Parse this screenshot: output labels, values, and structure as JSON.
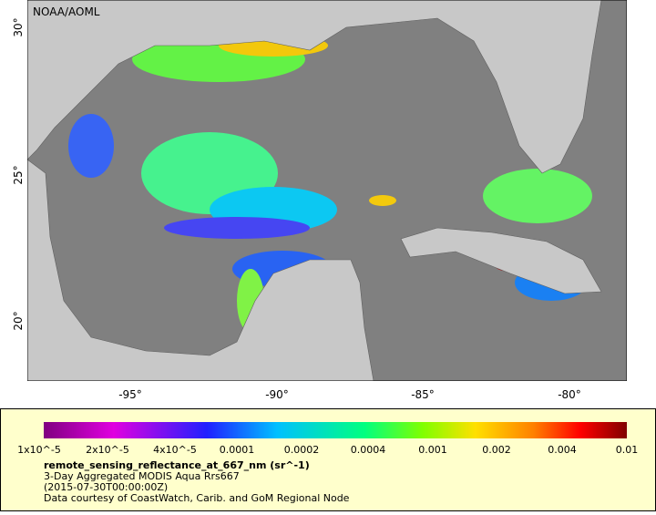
{
  "map": {
    "credit": "NOAA/AOML",
    "lat_labels": [
      "30°",
      "25°",
      "20°"
    ],
    "lon_labels": [
      "-95°",
      "-90°",
      "-85°",
      "-80°"
    ]
  },
  "legend": {
    "colorbar_labels": [
      "1x10^-5",
      "2x10^-5",
      "4x10^-5",
      "0.0001",
      "0.0002",
      "0.0004",
      "0.001",
      "0.002",
      "0.004",
      "0.01"
    ],
    "variable": "remote_sensing_reflectance_at_667_nm (sr^-1)",
    "dataset": "3-Day Aggregated MODIS Aqua Rrs667",
    "time": "(2015-07-30T00:00:00Z)",
    "source": "Data courtesy of CoastWatch, Carib. and GoM Regional Node"
  }
}
